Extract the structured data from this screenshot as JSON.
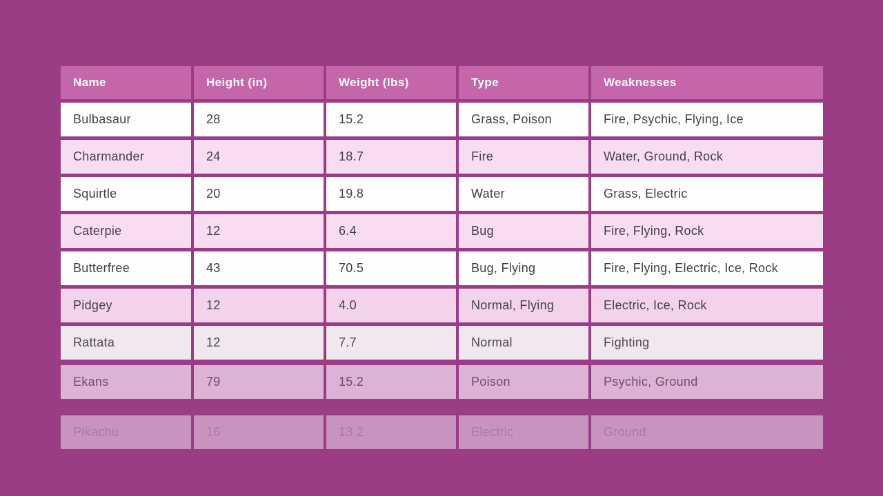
{
  "chart_data": {
    "type": "table",
    "columns": [
      "Name",
      "Height (in)",
      "Weight (lbs)",
      "Type",
      "Weaknesses"
    ],
    "rows": [
      [
        "Bulbasaur",
        "28",
        "15.2",
        "Grass, Poison",
        "Fire, Psychic, Flying, Ice"
      ],
      [
        "Charmander",
        "24",
        "18.7",
        "Fire",
        "Water, Ground, Rock"
      ],
      [
        "Squirtle",
        "20",
        "19.8",
        "Water",
        "Grass, Electric"
      ],
      [
        "Caterpie",
        "12",
        "6.4",
        "Bug",
        "Fire, Flying, Rock"
      ],
      [
        "Butterfree",
        "43",
        "70.5",
        "Bug, Flying",
        "Fire, Flying, Electric, Ice, Rock"
      ],
      [
        "Pidgey",
        "12",
        "4.0",
        "Normal, Flying",
        "Electric, Ice, Rock"
      ],
      [
        "Rattata",
        "12",
        "7.7",
        "Normal",
        "Fighting"
      ],
      [
        "Ekans",
        "79",
        "15.2",
        "Poison",
        "Psychic, Ground"
      ],
      [
        "Pikachu",
        "16",
        "13.2",
        "Electric",
        "Ground"
      ]
    ]
  },
  "colors": {
    "page_background": "#9b3d85",
    "header_background": "#c566aa",
    "header_text": "#ffffff",
    "row_white": "#fffeff",
    "row_pink": "#f8dcf2",
    "row_text": "#434046",
    "fading_row_rattata": "#f1e7ef",
    "fading_row_ekans": "#dcb2d5",
    "fading_row_pikachu": "#c894bd"
  }
}
